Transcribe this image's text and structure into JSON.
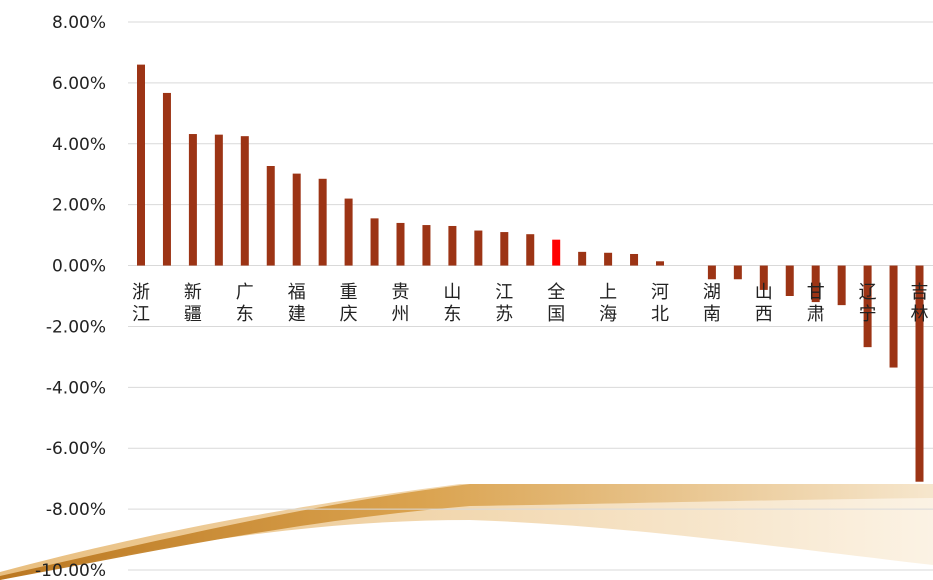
{
  "chart_data": {
    "type": "bar",
    "title": "",
    "xlabel": "",
    "ylabel": "",
    "ylim": [
      -10,
      8
    ],
    "y_tick_labels": [
      "8.00%",
      "6.00%",
      "4.00%",
      "2.00%",
      "0.00%",
      "-2.00%",
      "-4.00%",
      "-6.00%",
      "-8.00%",
      "-10.00%"
    ],
    "grid": true,
    "legend": "none",
    "categories": [
      "浙江",
      "",
      "新疆",
      "",
      "广东",
      "",
      "福建",
      "",
      "重庆",
      "",
      "贵州",
      "",
      "山东",
      "",
      "江苏",
      "",
      "全国",
      "",
      "上海",
      "",
      "河北",
      "",
      "湖南",
      "",
      "山西",
      "",
      "甘肃",
      "",
      "辽宁",
      "",
      "吉林"
    ],
    "values": [
      6.6,
      5.67,
      4.32,
      4.3,
      4.25,
      3.27,
      3.02,
      2.85,
      2.2,
      1.55,
      1.4,
      1.33,
      1.3,
      1.15,
      1.1,
      1.03,
      0.85,
      0.45,
      0.42,
      0.38,
      0.14,
      0.0,
      -0.45,
      -0.45,
      -0.8,
      -1.0,
      -1.2,
      -1.3,
      -2.68,
      -3.35,
      -7.1
    ],
    "highlight_category_index": 16,
    "colors": {
      "bar": "#9c3415",
      "highlight": "#ff0000",
      "grid": "#d9d9d9",
      "axis_text": "#222222",
      "swoosh_dark": "#c98a2e",
      "swoosh_light": "#f3dcb6"
    }
  }
}
